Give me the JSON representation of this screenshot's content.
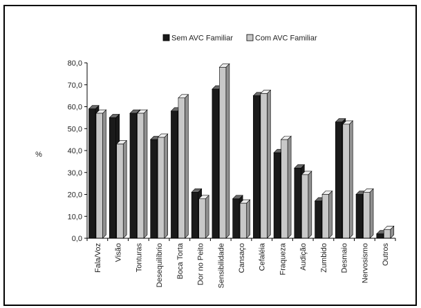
{
  "chart_data": {
    "type": "bar",
    "ylabel": "%",
    "ylim": [
      0,
      80
    ],
    "yticks": [
      "0,0",
      "10,0",
      "20,0",
      "30,0",
      "40,0",
      "50,0",
      "60,0",
      "70,0",
      "80,0"
    ],
    "grid": false,
    "legend_position": "top",
    "categories": [
      "Fala/Voz",
      "Visão",
      "Tonturas",
      "Desequilíbrio",
      "Boca Torta",
      "Dor no Peito",
      "Sensibilidade",
      "Cansaço",
      "Cefaléia",
      "Fraqueza",
      "Audição",
      "Zumbido",
      "Desmaio",
      "Nervosismo",
      "Outros"
    ],
    "series": [
      {
        "name": "Sem AVC Familiar",
        "color": "#1a1a1a",
        "values": [
          59,
          55,
          57,
          45,
          58,
          21,
          68,
          18,
          65,
          39,
          32,
          17,
          53,
          20,
          2
        ]
      },
      {
        "name": "Com AVC Familiar",
        "color": "#c8c8c8",
        "values": [
          57,
          43,
          57,
          46,
          64,
          18,
          78,
          16,
          66,
          45,
          29,
          20,
          52,
          21,
          4
        ]
      }
    ]
  }
}
